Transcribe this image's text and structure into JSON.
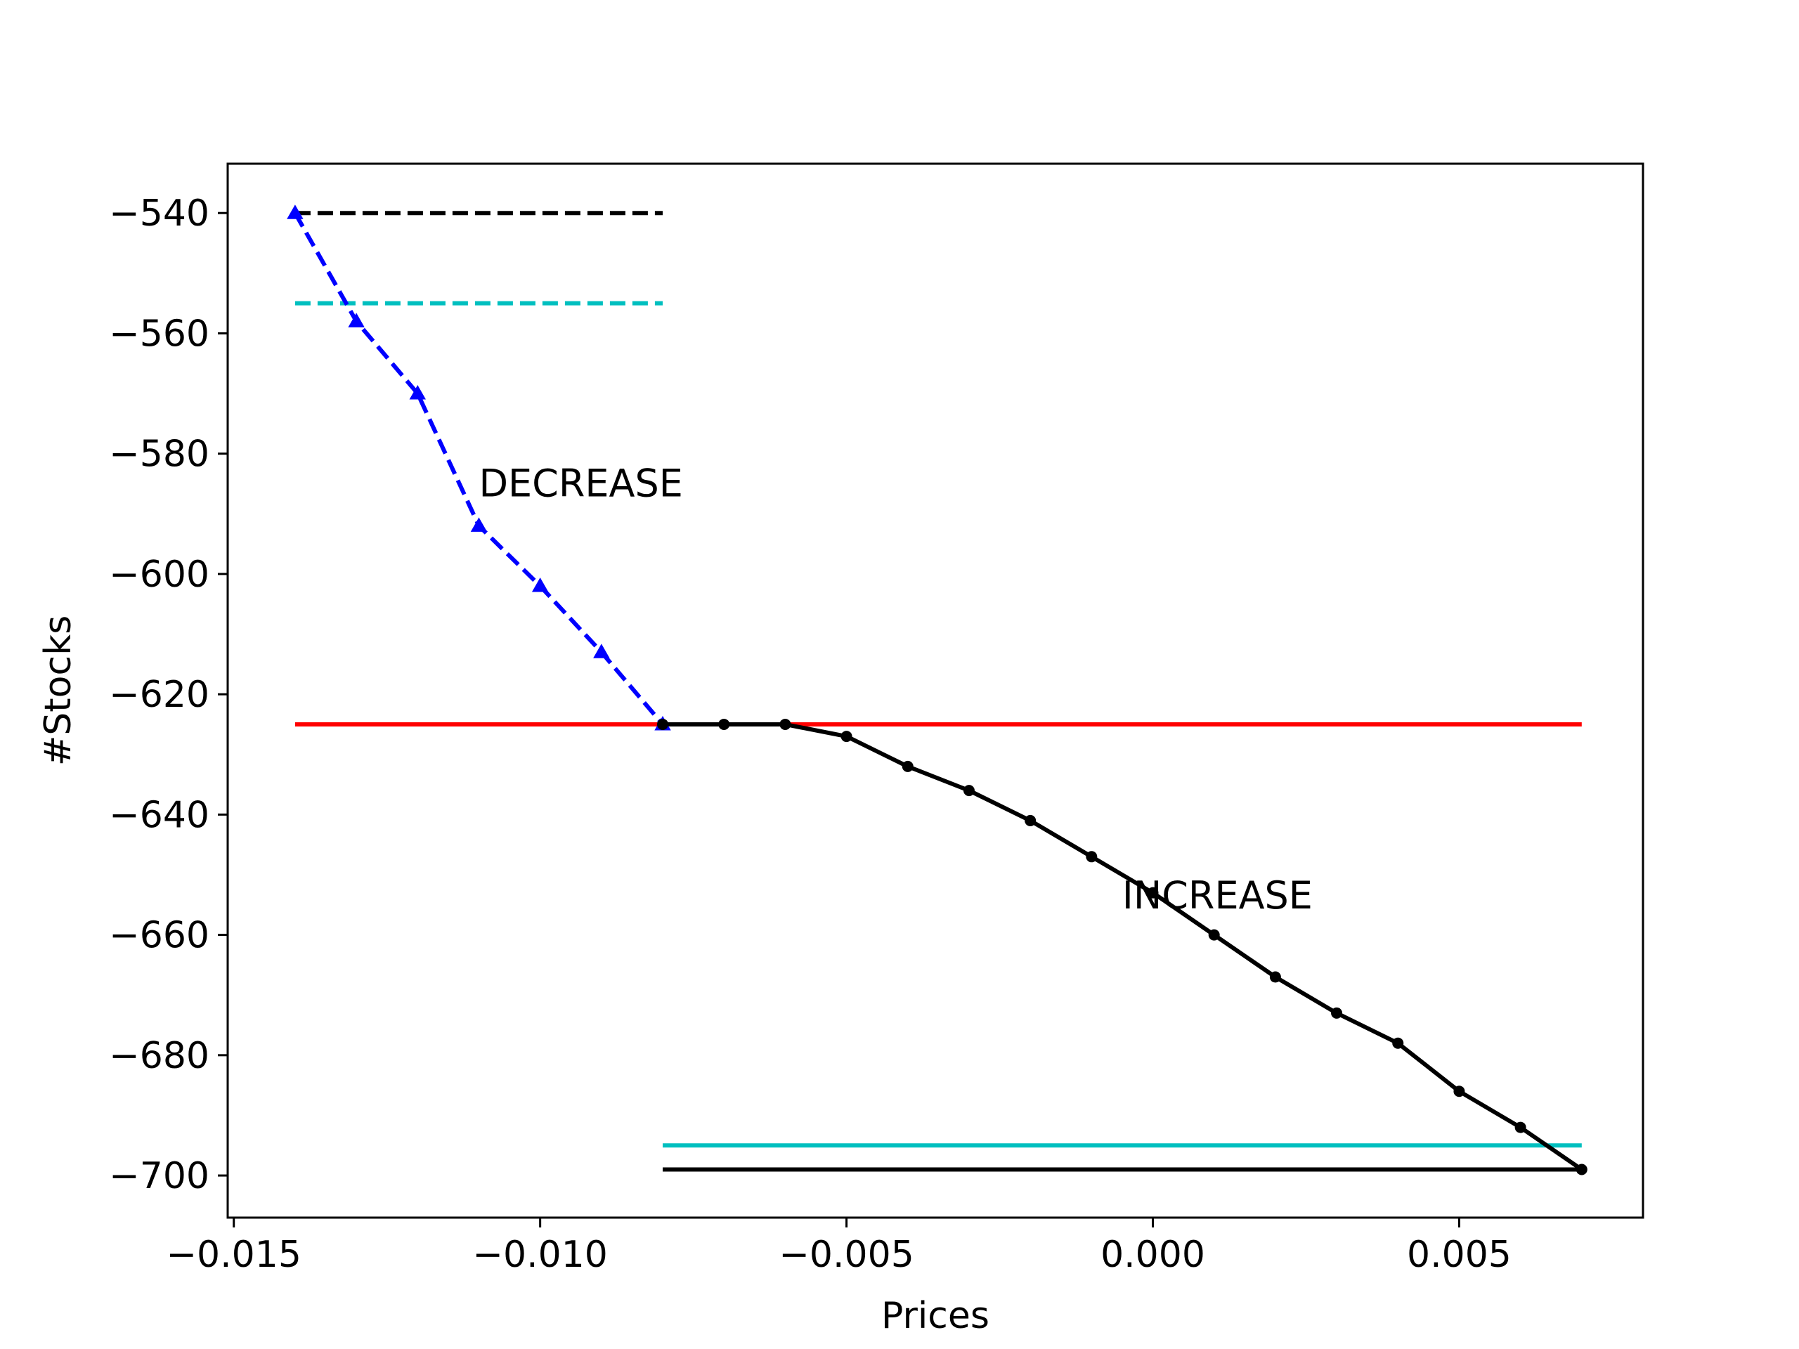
{
  "chart_data": {
    "type": "line",
    "title": "",
    "xlabel": "Prices",
    "ylabel": "#Stocks",
    "xlim": [
      -0.0151,
      0.008
    ],
    "ylim": [
      -707.0,
      -531.8
    ],
    "grid": false,
    "x_ticks": [
      {
        "value": -0.015,
        "label": "−0.015"
      },
      {
        "value": -0.01,
        "label": "−0.010"
      },
      {
        "value": -0.005,
        "label": "−0.005"
      },
      {
        "value": 0.0,
        "label": "0.000"
      },
      {
        "value": 0.005,
        "label": "0.005"
      }
    ],
    "y_ticks": [
      {
        "value": -540,
        "label": "−540"
      },
      {
        "value": -560,
        "label": "−560"
      },
      {
        "value": -580,
        "label": "−580"
      },
      {
        "value": -600,
        "label": "−600"
      },
      {
        "value": -620,
        "label": "−620"
      },
      {
        "value": -640,
        "label": "−640"
      },
      {
        "value": -660,
        "label": "−660"
      },
      {
        "value": -680,
        "label": "−680"
      },
      {
        "value": -700,
        "label": "−700"
      }
    ],
    "series": [
      {
        "key": "decrease",
        "color": "#0000ff",
        "style": "dashed",
        "marker": "triangle",
        "x": [
          -0.014,
          -0.013,
          -0.012,
          -0.011,
          -0.01,
          -0.009,
          -0.008
        ],
        "y": [
          -540,
          -558,
          -570,
          -592,
          -602,
          -613,
          -625
        ]
      },
      {
        "key": "increase",
        "color": "#000000",
        "style": "solid",
        "marker": "dot",
        "x": [
          -0.008,
          -0.007,
          -0.006,
          -0.005,
          -0.004,
          -0.003,
          -0.002,
          -0.001,
          0.0,
          0.001,
          0.002,
          0.003,
          0.004,
          0.005,
          0.006,
          0.007
        ],
        "y": [
          -625,
          -625,
          -625,
          -627,
          -632,
          -636,
          -641,
          -647,
          -653,
          -660,
          -667,
          -673,
          -678,
          -686,
          -692,
          -699
        ]
      }
    ],
    "reference_lines": [
      {
        "key": "ref-black-dashed",
        "color": "#000000",
        "style": "dashed",
        "x": [
          -0.014,
          -0.008
        ],
        "y": -540
      },
      {
        "key": "ref-cyan-dashed",
        "color": "#00bfbf",
        "style": "dashed",
        "x": [
          -0.014,
          -0.008
        ],
        "y": -555
      },
      {
        "key": "ref-red",
        "color": "#ff0000",
        "style": "solid",
        "x": [
          -0.014,
          0.007
        ],
        "y": -625
      },
      {
        "key": "ref-cyan-solid",
        "color": "#00bfbf",
        "style": "solid",
        "x": [
          -0.008,
          0.007
        ],
        "y": -695
      },
      {
        "key": "ref-black-solid",
        "color": "#000000",
        "style": "solid",
        "x": [
          -0.008,
          0.007
        ],
        "y": -699
      }
    ],
    "annotations": [
      {
        "text": "DECREASE",
        "x": -0.011,
        "y": -585
      },
      {
        "text": "INCREASE",
        "x": -0.0005,
        "y": -653.5
      }
    ]
  }
}
